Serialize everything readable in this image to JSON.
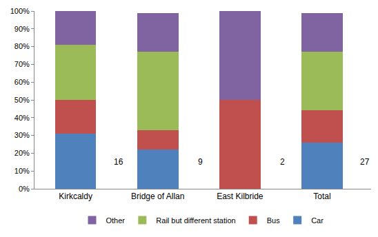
{
  "chart_data": {
    "type": "bar",
    "stacked": true,
    "categories": [
      "Kirkcaldy",
      "Bridge of Allan",
      "East Kilbride",
      "Total"
    ],
    "series": [
      {
        "name": "Car",
        "color": "#4f81bd",
        "values": [
          31,
          22,
          0,
          26
        ]
      },
      {
        "name": "Bus",
        "color": "#c0504d",
        "values": [
          19,
          11,
          50,
          18
        ]
      },
      {
        "name": "Rail but different station",
        "color": "#9bbb59",
        "values": [
          31,
          44,
          0,
          33
        ]
      },
      {
        "name": "Other",
        "color": "#8064a2",
        "values": [
          19,
          22,
          50,
          22
        ]
      }
    ],
    "annotations": [
      "16",
      "9",
      "2",
      "27"
    ],
    "ylim": [
      0,
      100
    ],
    "yticks": [
      {
        "value": 0,
        "label": "0%"
      },
      {
        "value": 10,
        "label": "10%"
      },
      {
        "value": 20,
        "label": "20%"
      },
      {
        "value": 30,
        "label": "30%"
      },
      {
        "value": 40,
        "label": "40%"
      },
      {
        "value": 50,
        "label": "50%"
      },
      {
        "value": 60,
        "label": "60%"
      },
      {
        "value": 70,
        "label": "70%"
      },
      {
        "value": 80,
        "label": "80%"
      },
      {
        "value": 90,
        "label": "90%"
      },
      {
        "value": 100,
        "label": "100%"
      }
    ],
    "grid": false,
    "legend": "bottom",
    "data_labels": false
  }
}
